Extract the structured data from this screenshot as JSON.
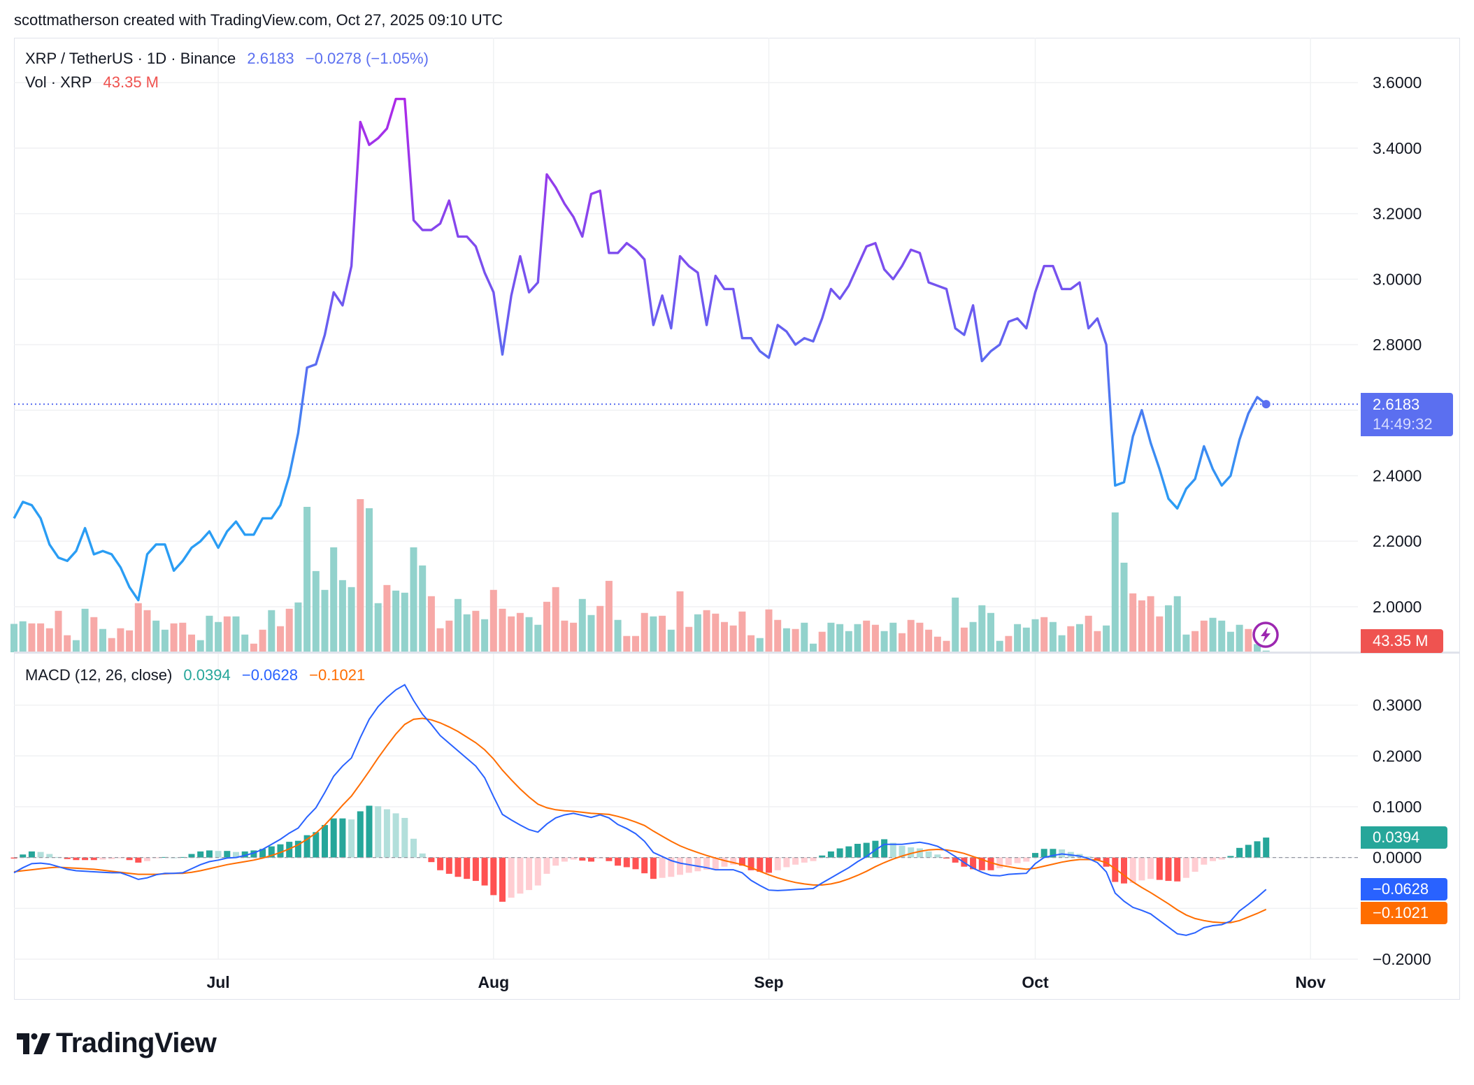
{
  "header": {
    "attribution": "scottmatherson created with TradingView.com, Oct 27, 2025 09:10 UTC"
  },
  "legend": {
    "symbol": "XRP / TetherUS · 1D · Binance",
    "last": "2.6183",
    "change": "−0.0278 (−1.05%)",
    "vol_label": "Vol · XRP",
    "vol_value": "43.35 M",
    "macd_label": "MACD (12, 26, close)",
    "macd_hist": "0.0394",
    "macd_line": "−0.0628",
    "macd_signal": "−0.1021"
  },
  "price_badge": {
    "price": "2.6183",
    "countdown": "14:49:32"
  },
  "volume_badge": "43.35 M",
  "macd_badges": {
    "hist": "0.0394",
    "macd": "−0.0628",
    "signal": "−0.1021"
  },
  "alert_icon": "lightning-icon",
  "logo": {
    "text": "TradingView"
  },
  "colors": {
    "price_line_top": "#b026e8",
    "price_line_mid": "#6a5cf0",
    "price_line_bottom": "#2a9df4",
    "last_price": "#5b6ff0",
    "volume_up": "#92d2cc",
    "volume_down": "#f7a9a7",
    "macd_line": "#2962ff",
    "signal_line": "#ff6d00",
    "hist_up_strong": "#26a69a",
    "hist_up_weak": "#b2dfdb",
    "hist_down_strong": "#ff5252",
    "hist_down_weak": "#ffcdd2",
    "volume_badge": "#ef5350",
    "alert": "#9c27b0",
    "grid": "#f0f1f3"
  },
  "chart_data": [
    {
      "type": "line",
      "title": "XRP / TetherUS · 1D · Binance",
      "x_range": [
        "2025-06-08",
        "2025-10-27"
      ],
      "interval": "1D",
      "xticks": [
        {
          "label": "Jul",
          "date": "2025-07-01"
        },
        {
          "label": "Aug",
          "date": "2025-08-01"
        },
        {
          "label": "Sep",
          "date": "2025-09-01"
        },
        {
          "label": "Oct",
          "date": "2025-10-01"
        },
        {
          "label": "Nov",
          "date": "2025-11-01"
        }
      ],
      "yticks": [
        {
          "value": 3.6,
          "label": "3.6000"
        },
        {
          "value": 3.4,
          "label": "3.4000"
        },
        {
          "value": 3.2,
          "label": "3.2000"
        },
        {
          "value": 3.0,
          "label": "3.0000"
        },
        {
          "value": 2.8,
          "label": "2.8000"
        },
        {
          "value": 2.4,
          "label": "2.4000"
        },
        {
          "value": 2.2,
          "label": "2.2000"
        },
        {
          "value": 2.0,
          "label": "2.0000"
        }
      ],
      "ygrid": [
        3.6,
        3.4,
        3.2,
        3.0,
        2.8,
        2.6,
        2.4,
        2.2,
        2.0
      ],
      "ylim": [
        1.861,
        3.737
      ],
      "grid": true,
      "last_price": 2.6183,
      "close": [
        2.27,
        2.32,
        2.31,
        2.27,
        2.19,
        2.15,
        2.14,
        2.17,
        2.24,
        2.16,
        2.17,
        2.16,
        2.12,
        2.06,
        2.02,
        2.16,
        2.19,
        2.19,
        2.11,
        2.14,
        2.18,
        2.2,
        2.23,
        2.18,
        2.23,
        2.26,
        2.22,
        2.22,
        2.27,
        2.27,
        2.31,
        2.4,
        2.53,
        2.73,
        2.74,
        2.83,
        2.96,
        2.92,
        3.04,
        3.48,
        3.41,
        3.43,
        3.46,
        3.55,
        3.55,
        3.18,
        3.15,
        3.15,
        3.17,
        3.24,
        3.13,
        3.13,
        3.1,
        3.02,
        2.96,
        2.77,
        2.95,
        3.07,
        2.96,
        2.99,
        3.32,
        3.28,
        3.23,
        3.19,
        3.13,
        3.26,
        3.27,
        3.08,
        3.08,
        3.11,
        3.09,
        3.06,
        2.86,
        2.95,
        2.85,
        3.07,
        3.04,
        3.02,
        2.86,
        3.01,
        2.97,
        2.97,
        2.82,
        2.82,
        2.78,
        2.76,
        2.86,
        2.84,
        2.8,
        2.82,
        2.81,
        2.88,
        2.97,
        2.94,
        2.98,
        3.04,
        3.1,
        3.11,
        3.03,
        3.0,
        3.04,
        3.09,
        3.08,
        2.99,
        2.98,
        2.97,
        2.85,
        2.83,
        2.92,
        2.75,
        2.78,
        2.8,
        2.87,
        2.88,
        2.85,
        2.96,
        3.04,
        3.04,
        2.97,
        2.97,
        2.99,
        2.85,
        2.88,
        2.8,
        2.37,
        2.38,
        2.52,
        2.6,
        2.5,
        2.42,
        2.33,
        2.3,
        2.36,
        2.39,
        2.49,
        2.42,
        2.37,
        2.4,
        2.51,
        2.59,
        2.64,
        2.6183
      ]
    },
    {
      "type": "bar",
      "name": "Vol · XRP",
      "unit": "M",
      "values": [
        756,
        825,
        769,
        769,
        639,
        1104,
        453,
        322,
        1159,
        936,
        620,
        378,
        639,
        583,
        1308,
        1122,
        843,
        601,
        769,
        787,
        471,
        322,
        973,
        806,
        955,
        955,
        471,
        229,
        601,
        1122,
        694,
        1159,
        1327,
        3875,
        2164,
        1662,
        2796,
        1922,
        1736,
        4080,
        3838,
        1308,
        1792,
        1643,
        1587,
        2796,
        2313,
        1494,
        639,
        843,
        1420,
        1011,
        1104,
        880,
        1662,
        1159,
        955,
        1048,
        936,
        732,
        1345,
        1736,
        843,
        787,
        1420,
        992,
        1234,
        1903,
        862,
        434,
        434,
        1048,
        955,
        973,
        601,
        1624,
        676,
        1011,
        1122,
        1029,
        806,
        713,
        1085,
        453,
        378,
        1141,
        862,
        639,
        620,
        787,
        229,
        546,
        787,
        750,
        564,
        750,
        843,
        732,
        564,
        787,
        508,
        862,
        787,
        601,
        415,
        304,
        1457,
        657,
        806,
        1252,
        1048,
        304,
        434,
        750,
        657,
        880,
        936,
        806,
        453,
        694,
        750,
        973,
        564,
        713,
        3726,
        2387,
        1569,
        1383,
        1494,
        955,
        1252,
        1494,
        471,
        564,
        843,
        918,
        843,
        546,
        732,
        620,
        217,
        43.35
      ],
      "direction": "uuddddduududdddduuddduuuduuddudduuuuuuuduuduuuudddu udud dddu uddddu uddu ddduduдddu dddddduddu duuduuuudd uuddddddud uuuuduuudu ududduuudd dduuudduuu ud"
    },
    {
      "type": "line",
      "title": "MACD (12, 26, close)",
      "ylim": [
        -0.2,
        0.404
      ],
      "ygrid": [
        0.3,
        0.2,
        0.1,
        0.0,
        -0.1,
        -0.2
      ],
      "yticks": [
        {
          "value": 0.3,
          "label": "0.3000"
        },
        {
          "value": 0.2,
          "label": "0.2000"
        },
        {
          "value": 0.1,
          "label": "0.1000"
        },
        {
          "value": 0.0,
          "label": "0.0000"
        },
        {
          "value": -0.2,
          "label": "−0.2000"
        }
      ],
      "macd": [
        -0.03,
        -0.02,
        -0.012,
        -0.011,
        -0.013,
        -0.018,
        -0.023,
        -0.026,
        -0.027,
        -0.028,
        -0.029,
        -0.03,
        -0.03,
        -0.036,
        -0.043,
        -0.04,
        -0.034,
        -0.031,
        -0.031,
        -0.03,
        -0.022,
        -0.014,
        -0.008,
        -0.005,
        -0.001,
        0.0,
        0.004,
        0.009,
        0.016,
        0.026,
        0.036,
        0.048,
        0.058,
        0.08,
        0.098,
        0.128,
        0.16,
        0.18,
        0.196,
        0.236,
        0.272,
        0.297,
        0.315,
        0.33,
        0.34,
        0.309,
        0.282,
        0.262,
        0.24,
        0.225,
        0.21,
        0.195,
        0.18,
        0.157,
        0.12,
        0.085,
        0.074,
        0.064,
        0.055,
        0.05,
        0.066,
        0.078,
        0.084,
        0.087,
        0.083,
        0.079,
        0.084,
        0.078,
        0.065,
        0.057,
        0.047,
        0.032,
        0.01,
        0.002,
        -0.006,
        -0.011,
        -0.014,
        -0.017,
        -0.02,
        -0.024,
        -0.024,
        -0.024,
        -0.03,
        -0.045,
        -0.055,
        -0.064,
        -0.065,
        -0.064,
        -0.063,
        -0.062,
        -0.061,
        -0.05,
        -0.04,
        -0.03,
        -0.02,
        -0.008,
        0.002,
        0.015,
        0.026,
        0.026,
        0.026,
        0.028,
        0.03,
        0.027,
        0.022,
        0.013,
        0.002,
        -0.01,
        -0.021,
        -0.029,
        -0.035,
        -0.036,
        -0.033,
        -0.032,
        -0.031,
        -0.012,
        0.0,
        0.004,
        0.007,
        0.005,
        0.003,
        -0.002,
        -0.01,
        -0.028,
        -0.07,
        -0.086,
        -0.098,
        -0.104,
        -0.111,
        -0.124,
        -0.137,
        -0.15,
        -0.153,
        -0.148,
        -0.138,
        -0.134,
        -0.132,
        -0.125,
        -0.105,
        -0.092,
        -0.078,
        -0.0628
      ],
      "signal": [
        -0.028,
        -0.026,
        -0.024,
        -0.022,
        -0.02,
        -0.019,
        -0.02,
        -0.021,
        -0.022,
        -0.023,
        -0.025,
        -0.027,
        -0.029,
        -0.031,
        -0.033,
        -0.033,
        -0.033,
        -0.032,
        -0.031,
        -0.031,
        -0.029,
        -0.026,
        -0.022,
        -0.018,
        -0.014,
        -0.011,
        -0.008,
        -0.005,
        -0.001,
        0.004,
        0.01,
        0.017,
        0.025,
        0.036,
        0.048,
        0.064,
        0.083,
        0.103,
        0.121,
        0.145,
        0.17,
        0.196,
        0.22,
        0.243,
        0.262,
        0.272,
        0.274,
        0.271,
        0.265,
        0.257,
        0.248,
        0.237,
        0.226,
        0.212,
        0.194,
        0.172,
        0.153,
        0.135,
        0.119,
        0.105,
        0.098,
        0.094,
        0.092,
        0.091,
        0.089,
        0.087,
        0.086,
        0.085,
        0.081,
        0.076,
        0.07,
        0.063,
        0.052,
        0.042,
        0.032,
        0.023,
        0.016,
        0.01,
        0.004,
        -0.001,
        -0.006,
        -0.01,
        -0.014,
        -0.02,
        -0.027,
        -0.034,
        -0.04,
        -0.045,
        -0.049,
        -0.052,
        -0.054,
        -0.054,
        -0.052,
        -0.048,
        -0.042,
        -0.035,
        -0.027,
        -0.018,
        -0.01,
        -0.003,
        0.003,
        0.008,
        0.012,
        0.015,
        0.016,
        0.015,
        0.012,
        0.008,
        0.002,
        -0.004,
        -0.01,
        -0.015,
        -0.018,
        -0.021,
        -0.023,
        -0.021,
        -0.017,
        -0.013,
        -0.009,
        -0.006,
        -0.004,
        -0.004,
        -0.005,
        -0.01,
        -0.022,
        -0.035,
        -0.048,
        -0.059,
        -0.069,
        -0.08,
        -0.091,
        -0.103,
        -0.113,
        -0.12,
        -0.124,
        -0.127,
        -0.128,
        -0.128,
        -0.124,
        -0.117,
        -0.11,
        -0.1021
      ]
    }
  ]
}
